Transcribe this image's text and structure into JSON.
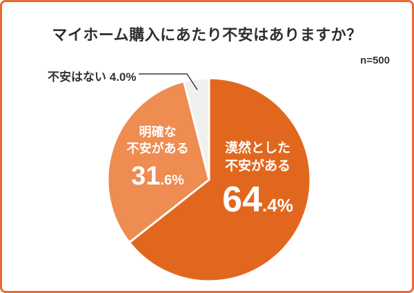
{
  "chart_data": {
    "type": "pie",
    "title": "マイホーム購入にあたり不安はありますか？",
    "sample_label": "n=500",
    "unit": "%",
    "start_angle_deg": 0,
    "direction": "clockwise",
    "slices": [
      {
        "label": "漠然とした不安がある",
        "label_lines": [
          "漠然とした",
          "不安がある"
        ],
        "value": 64.4,
        "pct_big": "64",
        "pct_small": ".4%",
        "color": "#e2671e",
        "label_color": "#ffffff"
      },
      {
        "label": "明確な不安がある",
        "label_lines": [
          "明確な",
          "不安がある"
        ],
        "value": 31.6,
        "pct_big": "31",
        "pct_small": ".6%",
        "color": "#ee8c52",
        "label_color": "#ffffff"
      },
      {
        "label": "不安はない",
        "value": 4.0,
        "pct": "4.0%",
        "color": "#f0f0ee",
        "label_color": "#333333"
      }
    ],
    "colors": {
      "border": "#ea6a2f",
      "background": "#ffffff",
      "title_color": "#2d2d2d",
      "leader_line": "#3a3a3a",
      "slice_separator": "#ffffff"
    },
    "legend_position": "labels-inside-slices"
  }
}
